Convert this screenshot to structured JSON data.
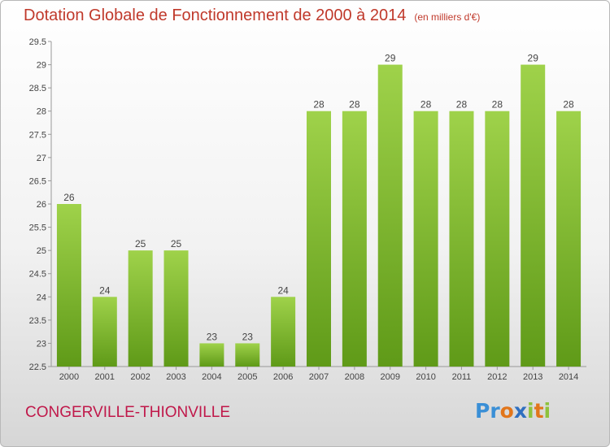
{
  "chart_data": {
    "type": "bar",
    "title": "Dotation Globale de Fonctionnement de 2000 à 2014",
    "unit_note": "(en milliers d'€)",
    "categories": [
      "2000",
      "2001",
      "2002",
      "2003",
      "2004",
      "2005",
      "2006",
      "2007",
      "2008",
      "2009",
      "2010",
      "2011",
      "2012",
      "2013",
      "2014"
    ],
    "values": [
      26,
      24,
      25,
      25,
      23,
      23,
      24,
      28,
      28,
      29,
      28,
      28,
      28,
      29,
      28
    ],
    "data_labels": [
      "26",
      "24",
      "25",
      "25",
      "23",
      "23",
      "24",
      "28",
      "28",
      "29",
      "28",
      "28",
      "28",
      "29",
      "28"
    ],
    "ylim": [
      22.5,
      29.5
    ],
    "yticks": [
      "22.5",
      "23",
      "23.5",
      "24",
      "24.5",
      "25",
      "25.5",
      "26",
      "26.5",
      "27",
      "27.5",
      "28",
      "28.5",
      "29",
      "29.5"
    ],
    "xlabel": "",
    "ylabel": "",
    "grid": false,
    "bar_color_top": "#9fd24a",
    "bar_color_bottom": "#5f9a18"
  },
  "footer": {
    "commune": "CONGERVILLE-THIONVILLE",
    "logo_text": "Proxiti"
  },
  "colors": {
    "title": "#c0392b",
    "commune": "#c0184a"
  }
}
